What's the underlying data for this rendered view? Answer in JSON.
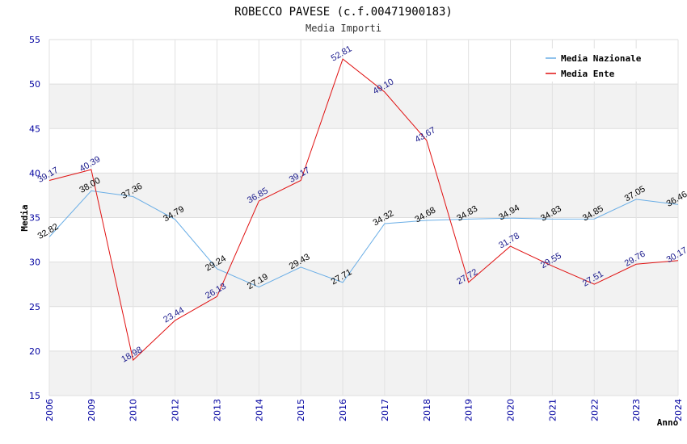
{
  "chart_data": {
    "type": "line",
    "title": "ROBECCO PAVESE (c.f.00471900183)",
    "subtitle": "Media Importi",
    "xlabel": "Anno",
    "ylabel": "Media",
    "ylim": [
      15,
      55
    ],
    "yticks": [
      15,
      20,
      25,
      30,
      35,
      40,
      45,
      50,
      55
    ],
    "grid": true,
    "legend_position": "top-right",
    "categories": [
      "2006",
      "2009",
      "2010",
      "2012",
      "2013",
      "2014",
      "2015",
      "2016",
      "2017",
      "2018",
      "2019",
      "2020",
      "2021",
      "2022",
      "2023",
      "2024"
    ],
    "series": [
      {
        "name": "Media Nazionale",
        "color": "#6aaee6",
        "values": [
          32.82,
          38.0,
          37.36,
          34.79,
          29.24,
          27.19,
          29.43,
          27.71,
          34.32,
          34.68,
          34.83,
          34.94,
          34.83,
          34.85,
          37.05,
          36.46
        ],
        "labels": [
          "32.82",
          "38.00",
          "37.36",
          "34.79",
          "29.24",
          "27.19",
          "29.43",
          "27.71",
          "34.32",
          "34.68",
          "34.83",
          "34.94",
          "34.83",
          "34.85",
          "37.05",
          "36.46"
        ]
      },
      {
        "name": "Media Ente",
        "color": "#e01010",
        "values": [
          39.17,
          40.39,
          18.98,
          23.44,
          26.13,
          36.85,
          39.17,
          52.81,
          49.1,
          43.67,
          27.72,
          31.78,
          29.55,
          27.51,
          29.76,
          30.17
        ],
        "labels": [
          "39.17",
          "40.39",
          "18.98",
          "23.44",
          "26.13",
          "36.85",
          "39.17",
          "52.81",
          "49.10",
          "43.67",
          "27.72",
          "31.78",
          "29.55",
          "27.51",
          "29.76",
          "30.17"
        ]
      }
    ]
  }
}
